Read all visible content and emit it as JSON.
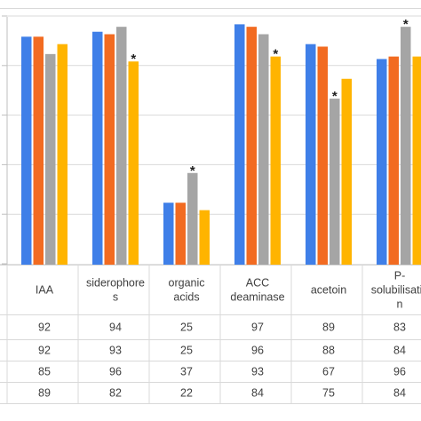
{
  "chart_data": {
    "type": "bar",
    "categories": [
      [
        "IAA"
      ],
      [
        "siderophore",
        "s"
      ],
      [
        "organic",
        "acids"
      ],
      [
        "ACC",
        "deaminase"
      ],
      [
        "acetoin"
      ],
      [
        "P-",
        "solubilisatio",
        "n"
      ]
    ],
    "series": [
      {
        "color": "#3F7FE8",
        "values": [
          92,
          94,
          25,
          97,
          89,
          83
        ],
        "labels": [
          "92",
          "94",
          "25",
          "97",
          "89",
          "83"
        ]
      },
      {
        "color": "#F26B21",
        "values": [
          92,
          93,
          25,
          96,
          88,
          84
        ],
        "labels": [
          "92",
          "93",
          "25",
          "96",
          "88",
          "84"
        ]
      },
      {
        "color": "#A5A5A5",
        "values": [
          85,
          96,
          37,
          93,
          67,
          96
        ],
        "labels": [
          "85",
          "96",
          "37",
          "93",
          "67",
          "96"
        ]
      },
      {
        "color": "#FFB400",
        "values": [
          89,
          82,
          22,
          84,
          75,
          84
        ],
        "labels": [
          "89",
          "82",
          "22",
          "84",
          "75",
          "84"
        ]
      }
    ],
    "annotations": [
      {
        "category": 1,
        "series": 3,
        "text": "*"
      },
      {
        "category": 2,
        "series": 2,
        "text": "*"
      },
      {
        "category": 3,
        "series": 3,
        "text": "*"
      },
      {
        "category": 4,
        "series": 2,
        "text": "*"
      },
      {
        "category": 5,
        "series": 2,
        "text": "*"
      }
    ],
    "ylim": [
      0,
      100
    ],
    "grid": true,
    "data_table": true
  }
}
